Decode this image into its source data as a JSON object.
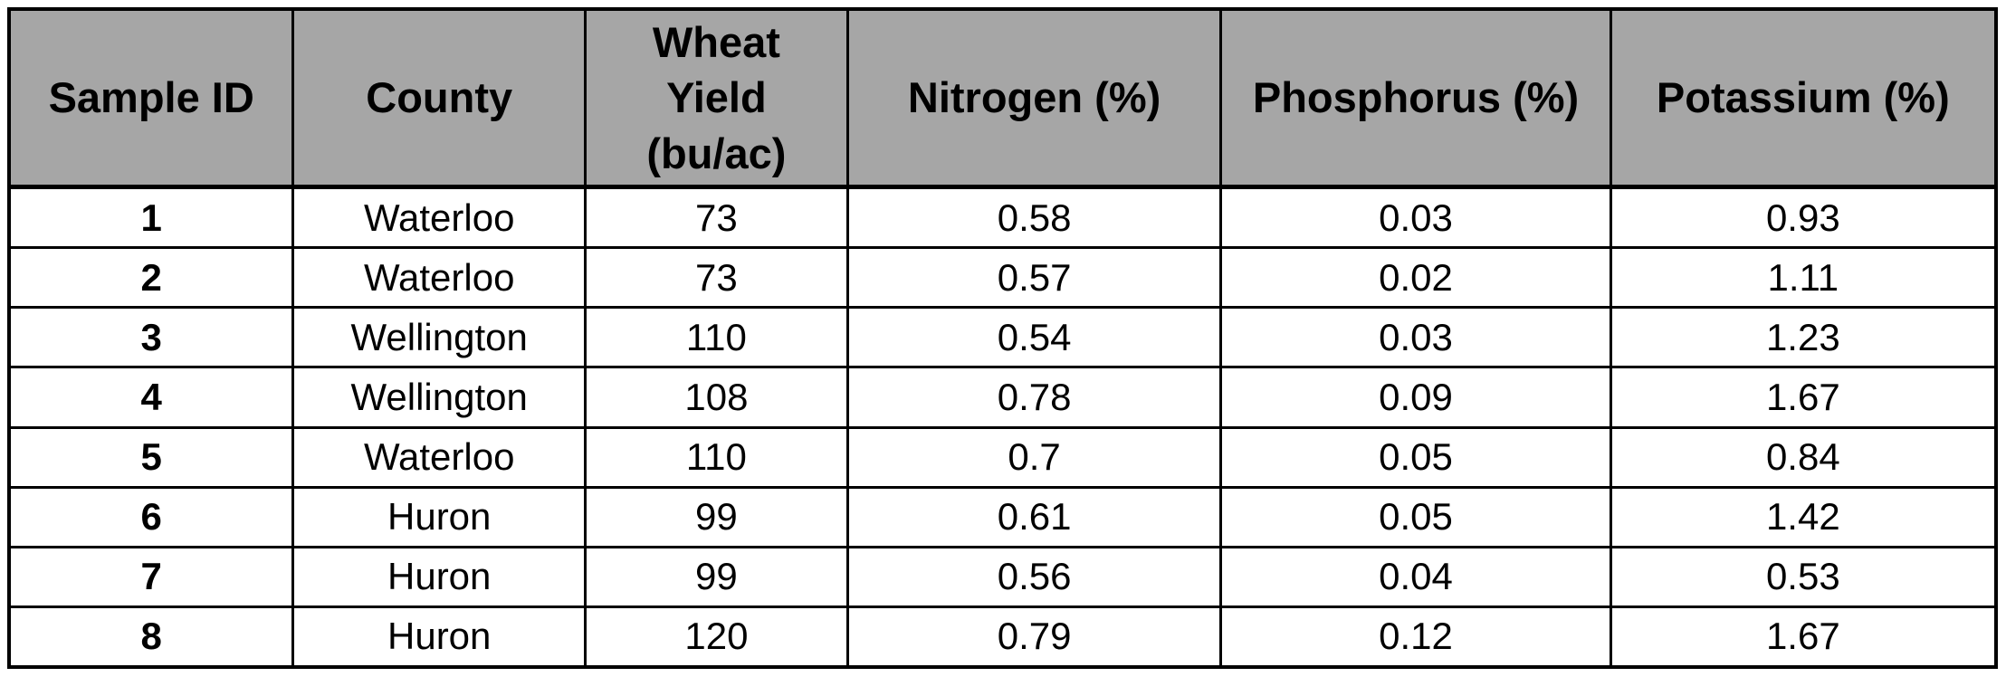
{
  "table": {
    "name": "wheat-soil-samples",
    "columns": [
      "Sample ID",
      "County",
      "Wheat Yield (bu/ac)",
      "Nitrogen (%)",
      "Phosphorus (%)",
      "Potassium (%)"
    ],
    "column_keys": [
      "sample-id",
      "county",
      "wheat-yield",
      "nitrogen",
      "phosphorus",
      "potassium"
    ],
    "rows": [
      [
        "1",
        "Waterloo",
        "73",
        "0.58",
        "0.03",
        "0.93"
      ],
      [
        "2",
        "Waterloo",
        "73",
        "0.57",
        "0.02",
        "1.11"
      ],
      [
        "3",
        "Wellington",
        "110",
        "0.54",
        "0.03",
        "1.23"
      ],
      [
        "4",
        "Wellington",
        "108",
        "0.78",
        "0.09",
        "1.67"
      ],
      [
        "5",
        "Waterloo",
        "110",
        "0.7",
        "0.05",
        "0.84"
      ],
      [
        "6",
        "Huron",
        "99",
        "0.61",
        "0.05",
        "1.42"
      ],
      [
        "7",
        "Huron",
        "99",
        "0.56",
        "0.04",
        "0.53"
      ],
      [
        "8",
        "Huron",
        "120",
        "0.79",
        "0.12",
        "1.67"
      ]
    ]
  },
  "colors": {
    "header_bg": "#a6a6a6",
    "border": "#000000",
    "row_bg": "#ffffff",
    "text": "#000000"
  }
}
